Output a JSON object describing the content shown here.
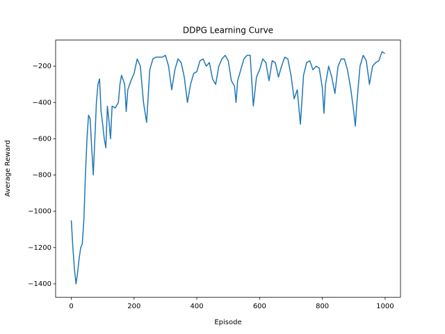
{
  "chart_data": {
    "type": "line",
    "title": "DDPG Learning Curve",
    "x_label": "Episode",
    "y_label": "Average Reward",
    "color": "#1f77b4",
    "x": [
      0,
      5,
      10,
      15,
      20,
      25,
      30,
      35,
      40,
      45,
      50,
      55,
      60,
      65,
      70,
      75,
      80,
      85,
      90,
      95,
      100,
      105,
      110,
      115,
      120,
      125,
      130,
      140,
      150,
      155,
      160,
      170,
      175,
      180,
      190,
      200,
      210,
      220,
      230,
      240,
      250,
      260,
      270,
      290,
      300,
      310,
      320,
      330,
      340,
      350,
      360,
      370,
      380,
      390,
      400,
      410,
      420,
      430,
      440,
      450,
      460,
      470,
      480,
      490,
      500,
      510,
      520,
      525,
      530,
      540,
      550,
      560,
      570,
      580,
      590,
      600,
      610,
      620,
      630,
      640,
      650,
      660,
      670,
      680,
      690,
      700,
      710,
      720,
      730,
      740,
      750,
      760,
      770,
      780,
      790,
      800,
      805,
      810,
      820,
      830,
      840,
      850,
      860,
      870,
      880,
      890,
      900,
      905,
      910,
      920,
      930,
      940,
      950,
      960,
      970,
      980,
      990,
      999
    ],
    "values": [
      -1050,
      -1200,
      -1320,
      -1400,
      -1340,
      -1260,
      -1200,
      -1180,
      -1050,
      -800,
      -600,
      -470,
      -490,
      -650,
      -800,
      -600,
      -400,
      -300,
      -270,
      -450,
      -520,
      -600,
      -650,
      -420,
      -500,
      -600,
      -420,
      -430,
      -400,
      -300,
      -250,
      -300,
      -450,
      -330,
      -280,
      -240,
      -160,
      -200,
      -400,
      -510,
      -220,
      -160,
      -150,
      -150,
      -140,
      -200,
      -330,
      -220,
      -160,
      -180,
      -260,
      -400,
      -300,
      -240,
      -230,
      -170,
      -160,
      -200,
      -180,
      -270,
      -300,
      -200,
      -160,
      -140,
      -170,
      -280,
      -310,
      -400,
      -280,
      -220,
      -160,
      -140,
      -140,
      -420,
      -260,
      -220,
      -160,
      -180,
      -280,
      -170,
      -180,
      -260,
      -200,
      -150,
      -160,
      -250,
      -380,
      -330,
      -520,
      -250,
      -180,
      -170,
      -220,
      -200,
      -210,
      -320,
      -460,
      -300,
      -200,
      -260,
      -350,
      -200,
      -160,
      -160,
      -220,
      -320,
      -450,
      -530,
      -400,
      -200,
      -140,
      -170,
      -300,
      -200,
      -180,
      -170,
      -120,
      -130
    ],
    "xlim": [
      -49.95,
      1048.95
    ],
    "ylim": [
      -1474,
      -56
    ],
    "xticks": [
      0,
      200,
      400,
      600,
      800,
      1000
    ],
    "yticks": [
      {
        "value": -1400,
        "label": "−1400"
      },
      {
        "value": -1200,
        "label": "−1200"
      },
      {
        "value": -1000,
        "label": "−1000"
      },
      {
        "value": -800,
        "label": "−800"
      },
      {
        "value": -600,
        "label": "−600"
      },
      {
        "value": -400,
        "label": "−400"
      },
      {
        "value": -200,
        "label": "−200"
      }
    ]
  }
}
